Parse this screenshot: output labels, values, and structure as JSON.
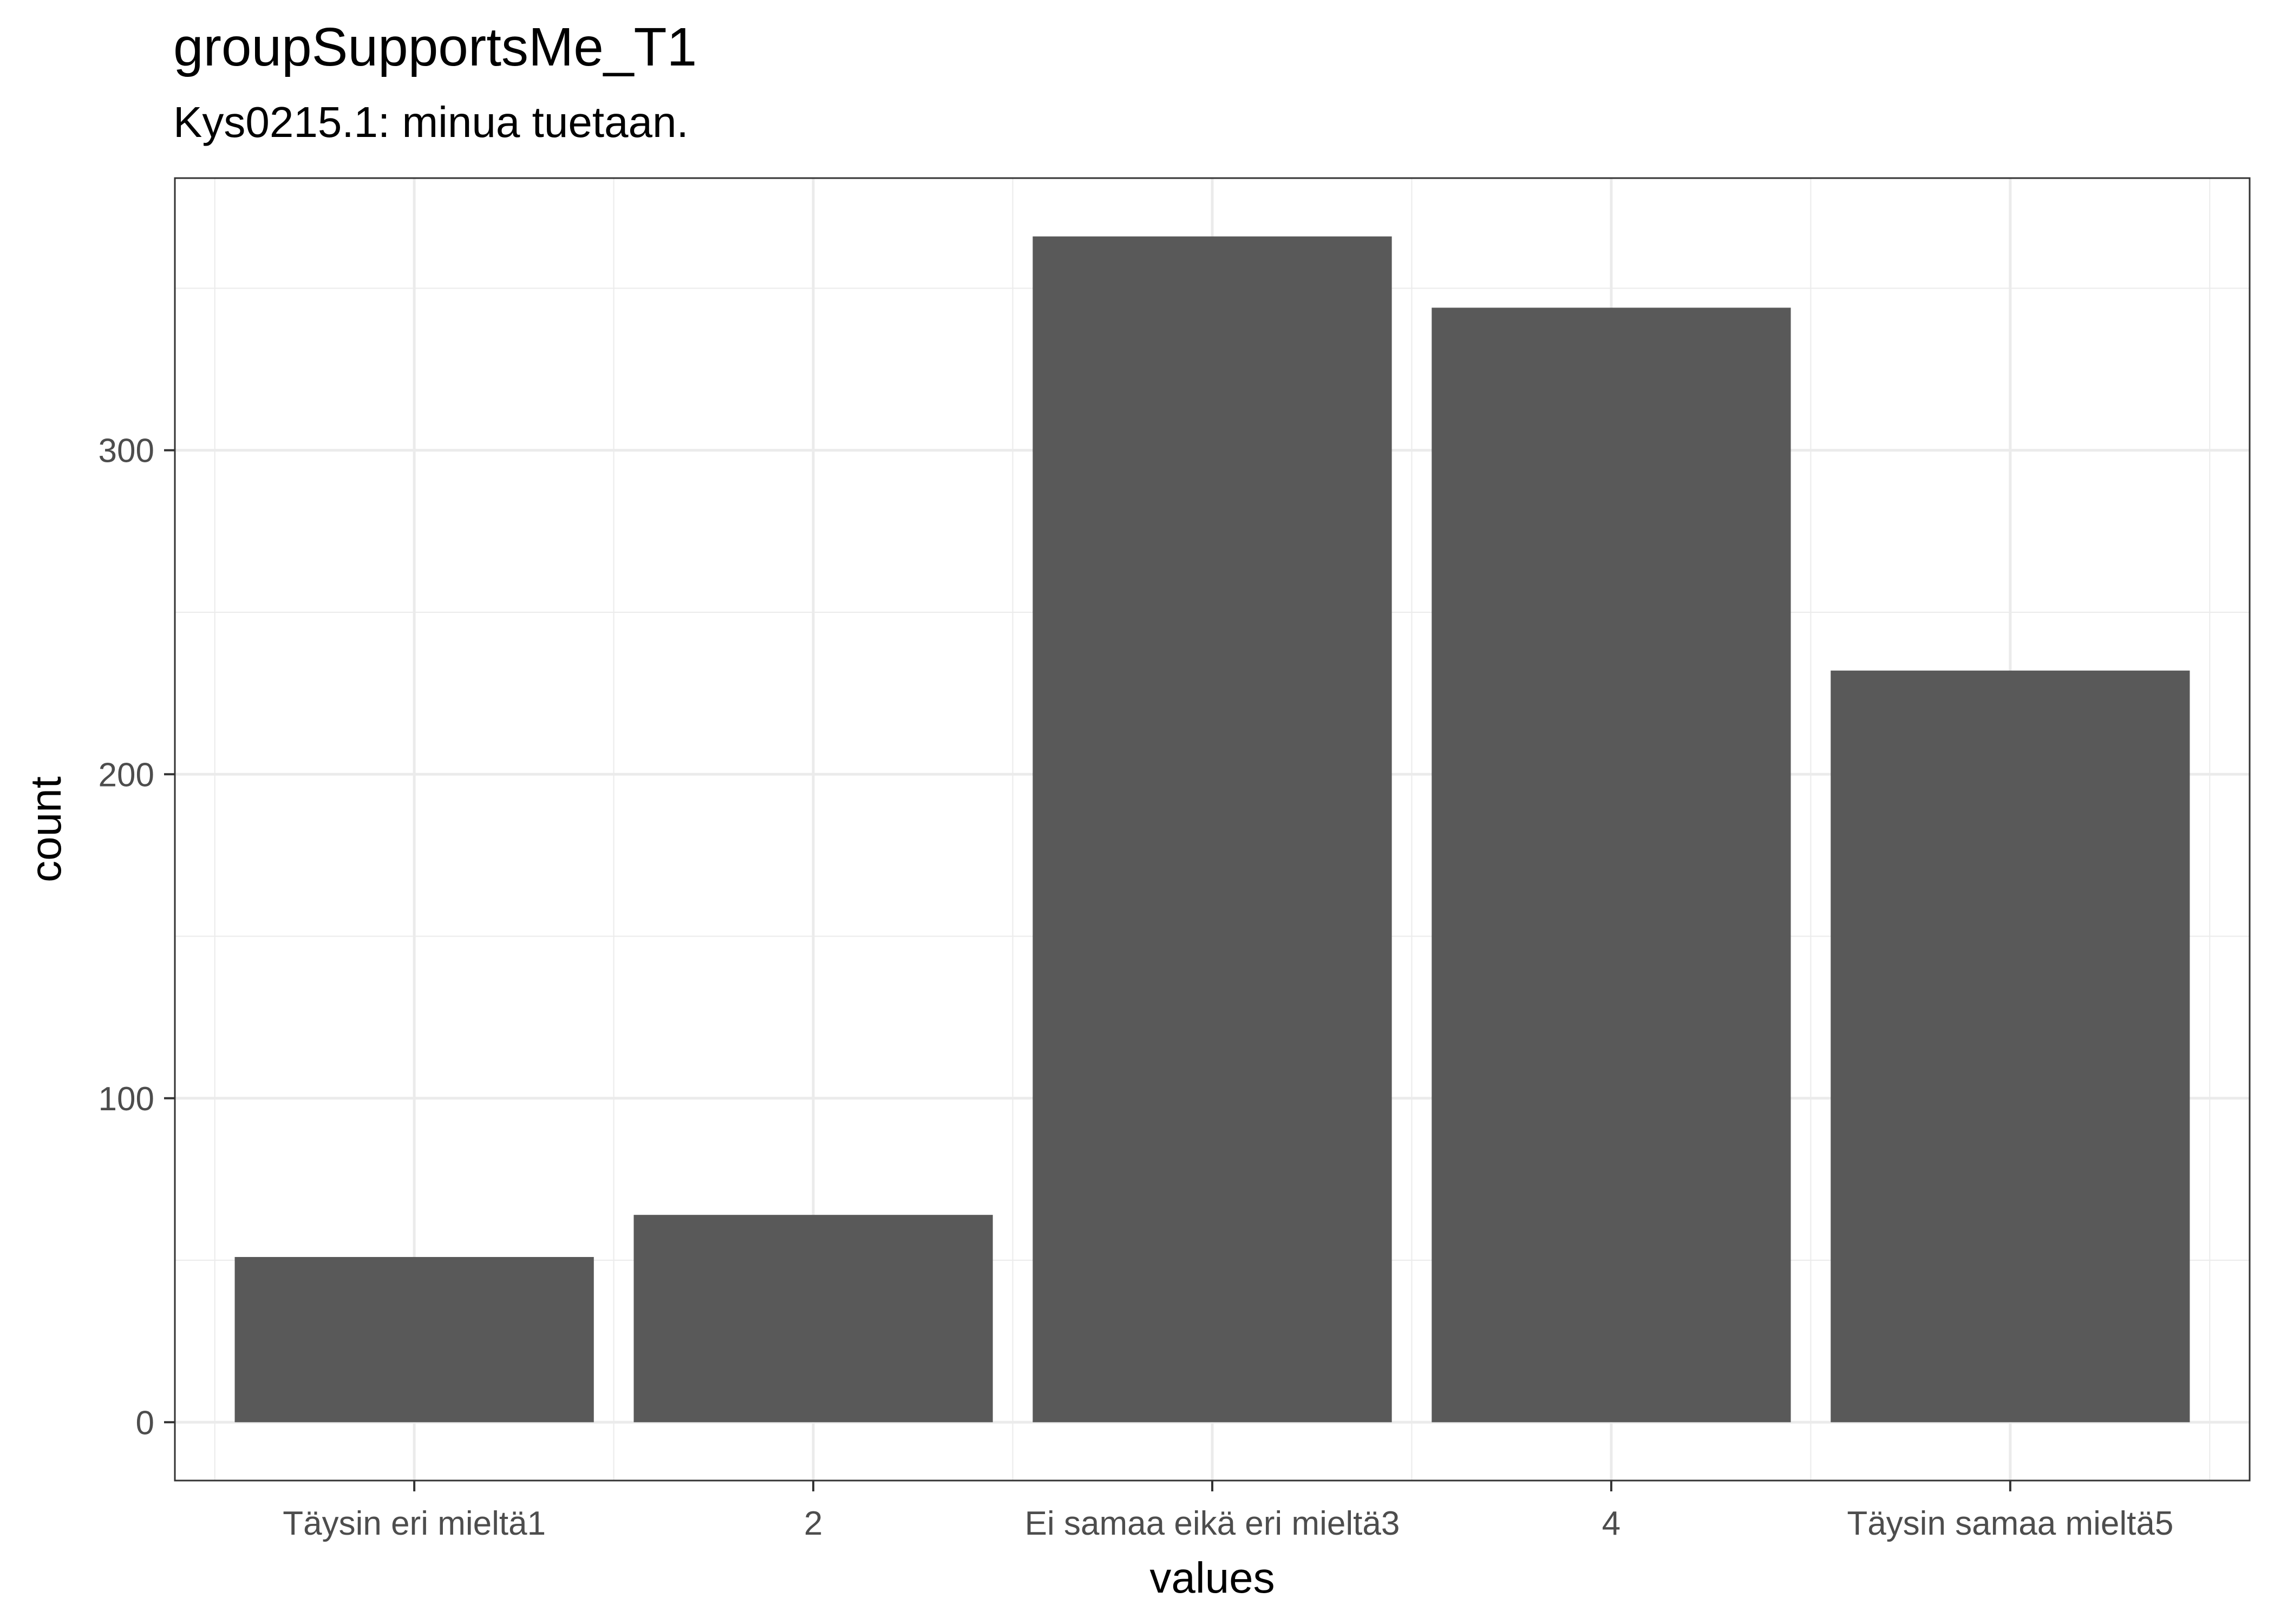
{
  "chart_data": {
    "type": "bar",
    "title": "groupSupportsMe_T1",
    "subtitle": "Kys0215.1: minua tuetaan.",
    "xlabel": "values",
    "ylabel": "count",
    "categories": [
      "Täysin eri mieltä1",
      "2",
      "Ei samaa eikä eri mieltä3",
      "4",
      "Täysin samaa mieltä5"
    ],
    "values": [
      51,
      64,
      366,
      344,
      232
    ],
    "yticks": [
      0,
      100,
      200,
      300
    ],
    "ytick_labels": [
      "0",
      "100",
      "200",
      "300"
    ],
    "ylim": [
      -18,
      384
    ],
    "grid": true,
    "bar_color": "#595959",
    "grid_color": "#ebebeb",
    "panel_border_color": "#333333"
  }
}
